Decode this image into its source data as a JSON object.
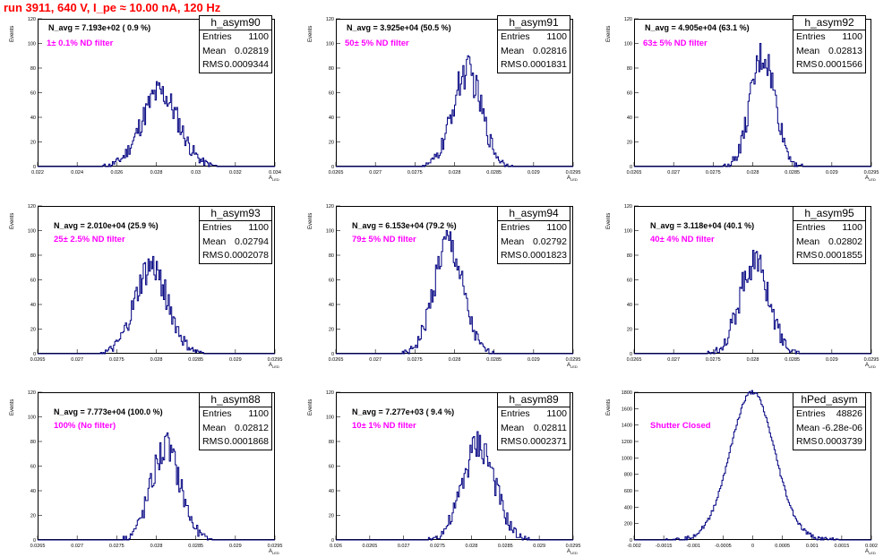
{
  "canvas_title": "run 3911,   640 V, I_pe ≈ 10.00 nA, 120 Hz",
  "stats_labels": {
    "entries": "Entries",
    "mean": "Mean",
    "rms": "RMS"
  },
  "y_axis_label": "Events",
  "x_axis_label": "A",
  "x_axis_sub": "LED",
  "colors": {
    "title": "#ff0000",
    "annotation": "#ff00ff",
    "histogram": "#000080"
  },
  "panels": [
    {
      "name": "h_asym90",
      "navg": "N_avg = 7.193e+02 ( 0.9 %)",
      "filter": "1± 0.1% ND filter",
      "entries": "1100",
      "mean": "0.02819",
      "rms": "0.0009344",
      "yticks": [
        "0",
        "20",
        "40",
        "60",
        "80",
        "100",
        "120"
      ],
      "xticks": [
        "0.022",
        "0.024",
        "0.026",
        "0.028",
        "0.03",
        "0.032",
        "0.034"
      ]
    },
    {
      "name": "h_asym91",
      "navg": "N_avg = 3.925e+04 (50.5 %)",
      "filter": "50± 5% ND filter",
      "entries": "1100",
      "mean": "0.02816",
      "rms": "0.0001831",
      "yticks": [
        "0",
        "20",
        "40",
        "60",
        "80",
        "100",
        "120"
      ],
      "xticks": [
        "0.0265",
        "0.027",
        "0.0275",
        "0.028",
        "0.0285",
        "0.029",
        "0.0295"
      ]
    },
    {
      "name": "h_asym92",
      "navg": "N_avg = 4.905e+04 (63.1 %)",
      "filter": "63± 5% ND filter",
      "entries": "1100",
      "mean": "0.02813",
      "rms": "0.0001566",
      "yticks": [
        "0",
        "20",
        "40",
        "60",
        "80",
        "100",
        "120"
      ],
      "xticks": [
        "0.0265",
        "0.027",
        "0.0275",
        "0.028",
        "0.0285",
        "0.029",
        "0.0295"
      ]
    },
    {
      "name": "h_asym93",
      "navg": "N_avg = 2.010e+04 (25.9 %)",
      "filter": "25± 2.5% ND filter",
      "entries": "1100",
      "mean": "0.02794",
      "rms": "0.0002078",
      "yticks": [
        "0",
        "20",
        "40",
        "60",
        "80",
        "100",
        "120"
      ],
      "xticks": [
        "0.0265",
        "0.027",
        "0.0275",
        "0.028",
        "0.0285",
        "0.029",
        "0.0295"
      ]
    },
    {
      "name": "h_asym94",
      "navg": "N_avg = 6.153e+04 (79.2 %)",
      "filter": "79± 5% ND filter",
      "entries": "1100",
      "mean": "0.02792",
      "rms": "0.0001823",
      "yticks": [
        "0",
        "20",
        "40",
        "60",
        "80",
        "100",
        "120"
      ],
      "xticks": [
        "0.0265",
        "0.027",
        "0.0275",
        "0.028",
        "0.0285",
        "0.029",
        "0.0295"
      ]
    },
    {
      "name": "h_asym95",
      "navg": "N_avg = 3.118e+04 (40.1 %)",
      "filter": "40± 4% ND filter",
      "entries": "1100",
      "mean": "0.02802",
      "rms": "0.0001855",
      "yticks": [
        "0",
        "20",
        "40",
        "60",
        "80",
        "100",
        "120"
      ],
      "xticks": [
        "0.0265",
        "0.027",
        "0.0275",
        "0.028",
        "0.0285",
        "0.029",
        "0.0295"
      ]
    },
    {
      "name": "h_asym88",
      "navg": "N_avg = 7.773e+04 (100.0 %)",
      "filter": "100% (No filter)",
      "entries": "1100",
      "mean": "0.02812",
      "rms": "0.0001868",
      "yticks": [
        "0",
        "20",
        "40",
        "60",
        "80",
        "100",
        "120"
      ],
      "xticks": [
        "0.0265",
        "0.027",
        "0.0275",
        "0.028",
        "0.0285",
        "0.029",
        "0.0295"
      ]
    },
    {
      "name": "h_asym89",
      "navg": "N_avg = 7.277e+03 ( 9.4 %)",
      "filter": "10± 1% ND filter",
      "entries": "1100",
      "mean": "0.02811",
      "rms": "0.0002371",
      "yticks": [
        "0",
        "20",
        "40",
        "60",
        "80",
        "100",
        "120"
      ],
      "xticks": [
        "0.026",
        "0.0265",
        "0.027",
        "0.0275",
        "0.028",
        "0.0285",
        "0.029",
        "0.0295"
      ]
    },
    {
      "name": "hPed_asym",
      "navg": "",
      "filter": "Shutter Closed",
      "entries": "48826",
      "mean": "-6.28e-06",
      "rms": "0.0003739",
      "yticks": [
        "0",
        "200",
        "400",
        "600",
        "800",
        "1000",
        "1200",
        "1400",
        "1600",
        "1800"
      ],
      "xticks": [
        "-0.002",
        "-0.0015",
        "-0.001",
        "-0.0005",
        "0",
        "0.0005",
        "0.001",
        "0.0015",
        "0.002"
      ]
    }
  ],
  "chart_data": [
    {
      "type": "histogram",
      "title": "h_asym90",
      "ylabel": "Events",
      "xlim": [
        0.022,
        0.034
      ],
      "ylim": [
        0,
        120
      ],
      "mean": 0.02819,
      "rms": 0.0009344,
      "entries": 1100,
      "peak": 60
    },
    {
      "type": "histogram",
      "title": "h_asym91",
      "ylabel": "Events",
      "xlim": [
        0.0265,
        0.0295
      ],
      "ylim": [
        0,
        120
      ],
      "mean": 0.02816,
      "rms": 0.0001831,
      "entries": 1100,
      "peak": 77
    },
    {
      "type": "histogram",
      "title": "h_asym92",
      "ylabel": "Events",
      "xlim": [
        0.0265,
        0.0295
      ],
      "ylim": [
        0,
        120
      ],
      "mean": 0.02813,
      "rms": 0.0001566,
      "entries": 1100,
      "peak": 90
    },
    {
      "type": "histogram",
      "title": "h_asym93",
      "ylabel": "Events",
      "xlim": [
        0.0265,
        0.0295
      ],
      "ylim": [
        0,
        120
      ],
      "mean": 0.02794,
      "rms": 0.0002078,
      "entries": 1100,
      "peak": 70
    },
    {
      "type": "histogram",
      "title": "h_asym94",
      "ylabel": "Events",
      "xlim": [
        0.0265,
        0.0295
      ],
      "ylim": [
        0,
        120
      ],
      "mean": 0.02792,
      "rms": 0.0001823,
      "entries": 1100,
      "peak": 90
    },
    {
      "type": "histogram",
      "title": "h_asym95",
      "ylabel": "Events",
      "xlim": [
        0.0265,
        0.0295
      ],
      "ylim": [
        0,
        120
      ],
      "mean": 0.02802,
      "rms": 0.0001855,
      "entries": 1100,
      "peak": 75
    },
    {
      "type": "histogram",
      "title": "h_asym88",
      "ylabel": "Events",
      "xlim": [
        0.0265,
        0.0295
      ],
      "ylim": [
        0,
        120
      ],
      "mean": 0.02812,
      "rms": 0.0001868,
      "entries": 1100,
      "peak": 75
    },
    {
      "type": "histogram",
      "title": "h_asym89",
      "ylabel": "Events",
      "xlim": [
        0.026,
        0.0295
      ],
      "ylim": [
        0,
        120
      ],
      "mean": 0.02811,
      "rms": 0.0002371,
      "entries": 1100,
      "peak": 78
    },
    {
      "type": "histogram",
      "title": "hPed_asym",
      "ylabel": "Events",
      "xlim": [
        -0.002,
        0.002
      ],
      "ylim": [
        0,
        1800
      ],
      "mean": -6.28e-06,
      "rms": 0.0003739,
      "entries": 48826,
      "peak": 1800
    }
  ]
}
